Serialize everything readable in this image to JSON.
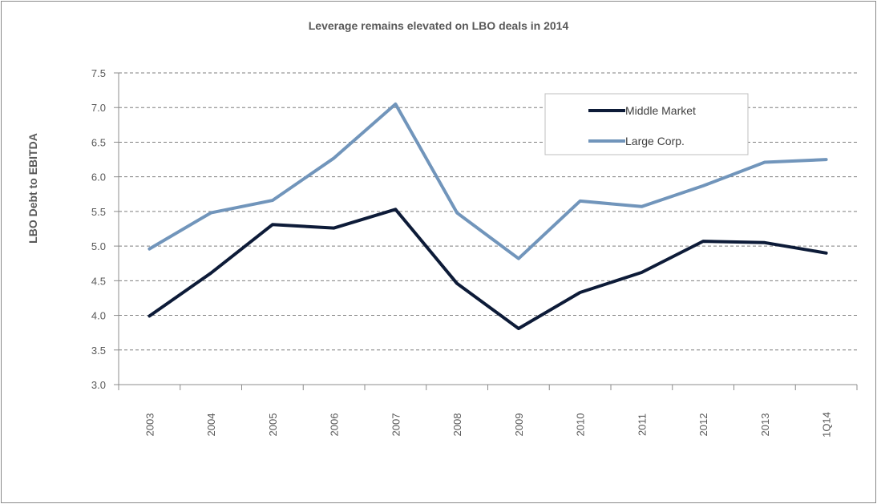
{
  "chart_data": {
    "type": "line",
    "title": "Leverage remains elevated on LBO deals in 2014",
    "xlabel": "",
    "ylabel": "LBO Debt to EBITDA",
    "categories": [
      "2003",
      "2004",
      "2005",
      "2006",
      "2007",
      "2008",
      "2009",
      "2010",
      "2011",
      "2012",
      "2013",
      "1Q14"
    ],
    "yticks": [
      "3.0",
      "3.5",
      "4.0",
      "4.5",
      "5.0",
      "5.5",
      "6.0",
      "6.5",
      "7.0",
      "7.5"
    ],
    "ylim": [
      3.0,
      7.5
    ],
    "grid": "horizontal dashed",
    "legend_position": "top-right",
    "series": [
      {
        "name": "Middle Market",
        "color": "#0d1b38",
        "values": [
          3.99,
          4.61,
          5.31,
          5.26,
          5.53,
          4.46,
          3.81,
          4.33,
          4.62,
          5.07,
          5.05,
          4.9
        ]
      },
      {
        "name": "Large Corp.",
        "color": "#7195bb",
        "values": [
          4.96,
          5.48,
          5.66,
          6.27,
          7.05,
          5.48,
          4.82,
          5.65,
          5.57,
          5.87,
          6.21,
          6.25
        ]
      }
    ]
  }
}
